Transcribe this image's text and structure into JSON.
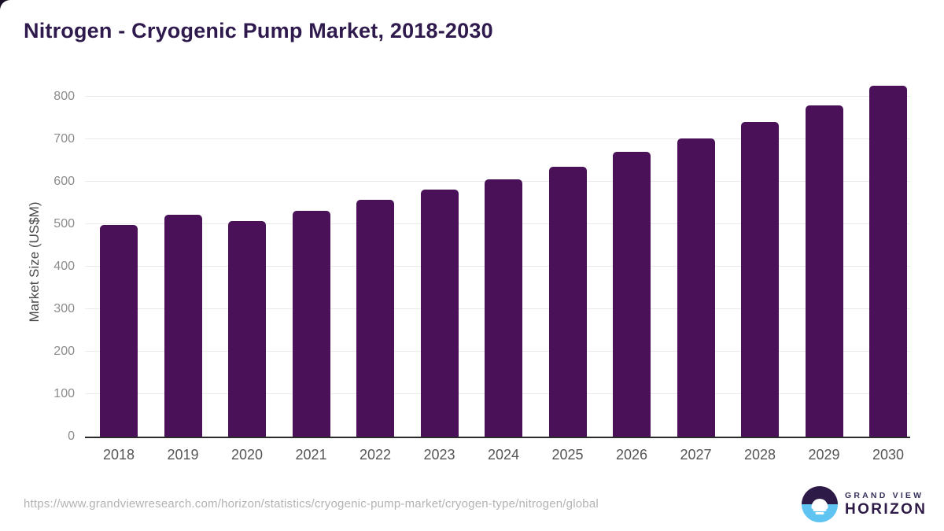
{
  "title": "Nitrogen - Cryogenic Pump Market, 2018-2030",
  "chart_data": {
    "type": "bar",
    "title": "Nitrogen - Cryogenic Pump Market, 2018-2030",
    "categories": [
      "2018",
      "2019",
      "2020",
      "2021",
      "2022",
      "2023",
      "2024",
      "2025",
      "2026",
      "2027",
      "2028",
      "2029",
      "2030"
    ],
    "values": [
      498,
      523,
      508,
      532,
      558,
      581,
      606,
      635,
      670,
      701,
      740,
      780,
      825
    ],
    "xlabel": "",
    "ylabel": "Market Size (US$M)",
    "ylim": [
      0,
      830
    ],
    "yticks": [
      0,
      100,
      200,
      300,
      400,
      500,
      600,
      700,
      800
    ],
    "grid": true,
    "legend": "none",
    "bar_color": "#4a1158",
    "gridline_color": "#eaeaea",
    "axis_line_color": "#2b2b2b"
  },
  "colors": {
    "title": "#2f1a4d",
    "bar": "#4a1158",
    "y_tick_label": "#8c8c8c",
    "x_tick_label": "#555555",
    "source_url": "#b3b3b3",
    "logo_purple": "#2e1a47",
    "logo_blue": "#5fc4f1"
  },
  "footer": {
    "source_url": "https://www.grandviewresearch.com/horizon/statistics/cryogenic-pump-market/cryogen-type/nitrogen/global",
    "logo": {
      "line1": "GRAND VIEW",
      "line2": "HORIZON"
    }
  }
}
